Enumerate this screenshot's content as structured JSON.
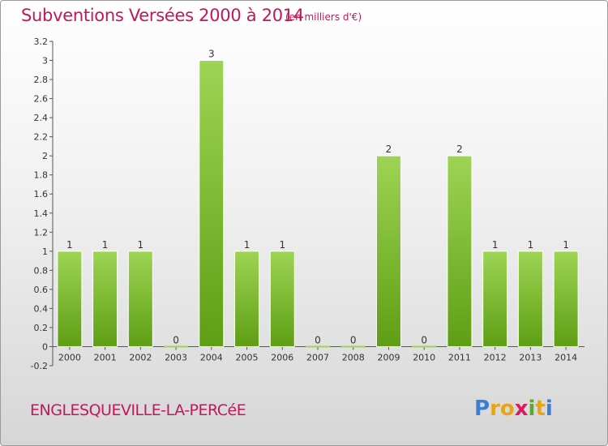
{
  "header": {
    "title": "Subventions Versées 2000 à 2014",
    "unit_note": "(en milliers d'€)"
  },
  "footer": {
    "commune": "ENGLESQUEVILLE-LA-PERCéE",
    "logo_letters": [
      "P",
      "r",
      "o",
      "x",
      "i",
      "t",
      "i"
    ],
    "logo_colors": [
      "#3a7fd5",
      "#e8a317",
      "#e8a317",
      "#d81b60",
      "#5aa832",
      "#e8a317",
      "#3a7fd5"
    ]
  },
  "colors": {
    "title": "#c2185b",
    "bar_top": "#9ed454",
    "bar_bottom": "#5e9e14"
  },
  "chart_data": {
    "type": "bar",
    "categories": [
      "2000",
      "2001",
      "2002",
      "2003",
      "2004",
      "2005",
      "2006",
      "2007",
      "2008",
      "2009",
      "2010",
      "2011",
      "2012",
      "2013",
      "2014"
    ],
    "values": [
      1,
      1,
      1,
      0,
      3,
      1,
      1,
      0,
      0,
      2,
      0,
      2,
      1,
      1,
      1
    ],
    "data_labels": [
      "1",
      "1",
      "1",
      "0",
      "3",
      "1",
      "1",
      "0",
      "0",
      "2",
      "0",
      "2",
      "1",
      "1",
      "1"
    ],
    "y_ticks": [
      "-0.2",
      "0",
      "0.2",
      "0.4",
      "0.6",
      "0.8",
      "1",
      "1.2",
      "1.4",
      "1.6",
      "1.8",
      "2",
      "2.2",
      "2.4",
      "2.6",
      "2.8",
      "3",
      "3.2"
    ],
    "ylim": [
      -0.2,
      3.2
    ],
    "grid": false,
    "title": "Subventions Versées 2000 à 2014",
    "ylabel": "(en milliers d'€)"
  }
}
